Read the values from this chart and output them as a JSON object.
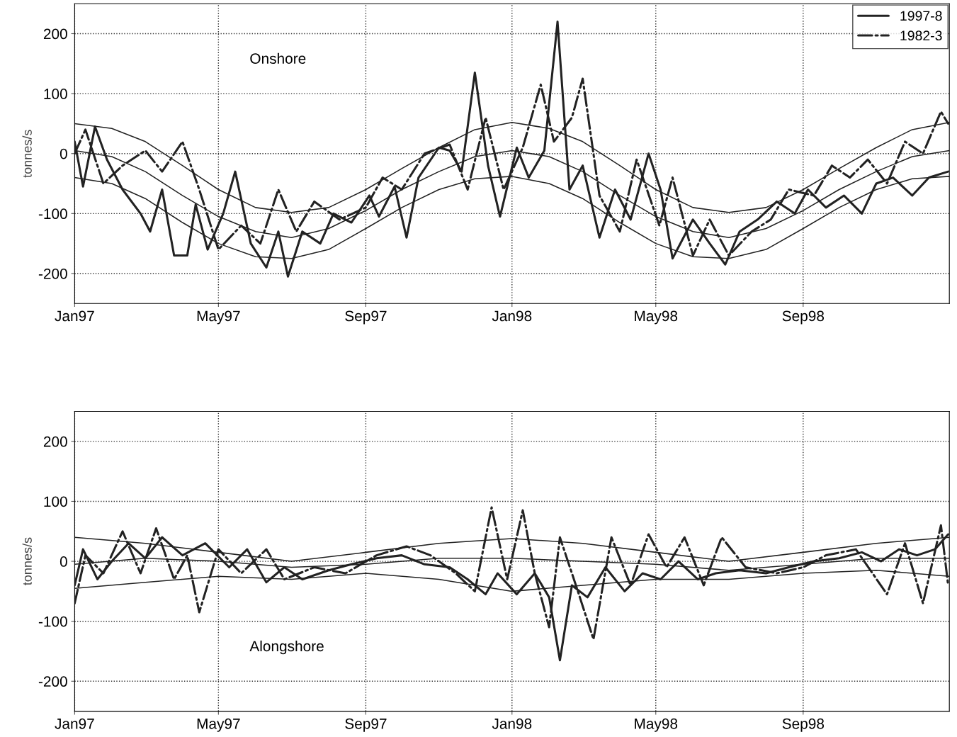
{
  "chart_data": [
    {
      "type": "line",
      "ylabel": "tonnes/s",
      "annotations": [
        "Onshore"
      ],
      "legend": "top right",
      "grid": true,
      "marker": "none",
      "xlim": [
        "1997-01-01",
        "1999-01-01"
      ],
      "ylim": [
        -250,
        250
      ],
      "yticks": [
        -200,
        -100,
        0,
        100,
        200
      ],
      "xticks": [
        {
          "value": "1997-01-01",
          "label": "Jan97"
        },
        {
          "value": "1997-05-01",
          "label": "May97"
        },
        {
          "value": "1997-09-01",
          "label": "Sep97"
        },
        {
          "value": "1998-01-01",
          "label": "Jan98"
        },
        {
          "value": "1998-05-01",
          "label": "May98"
        },
        {
          "value": "1998-09-01",
          "label": "Sep98"
        }
      ],
      "series": [
        {
          "name": "1997-8",
          "color": "#222222",
          "line_style": "solid",
          "x": [
            "1997-01-01",
            "1997-01-08",
            "1997-01-18",
            "1997-01-28",
            "1997-02-10",
            "1997-02-25",
            "1997-03-05",
            "1997-03-15",
            "1997-03-25",
            "1997-04-05",
            "1997-04-12",
            "1997-04-22",
            "1997-05-05",
            "1997-05-15",
            "1997-05-28",
            "1997-06-10",
            "1997-06-20",
            "1997-06-28",
            "1997-07-10",
            "1997-07-25",
            "1997-08-05",
            "1997-08-20",
            "1997-09-04",
            "1997-09-12",
            "1997-09-25",
            "1997-10-05",
            "1997-10-15",
            "1997-11-01",
            "1997-11-10",
            "1997-11-20",
            "1997-12-01",
            "1997-12-12",
            "1997-12-22",
            "1998-01-05",
            "1998-01-15",
            "1998-01-28",
            "1998-02-08",
            "1998-02-18",
            "1998-03-01",
            "1998-03-15",
            "1998-03-28",
            "1998-04-10",
            "1998-04-25",
            "1998-05-05",
            "1998-05-15",
            "1998-06-01",
            "1998-06-15",
            "1998-06-28",
            "1998-07-10",
            "1998-07-25",
            "1998-08-10",
            "1998-08-25",
            "1998-09-05",
            "1998-09-20",
            "1998-10-05",
            "1998-10-20",
            "1998-11-01",
            "1998-11-15",
            "1998-12-01",
            "1998-12-15",
            "1998-12-31"
          ],
          "values": [
            20,
            -55,
            45,
            -10,
            -60,
            -100,
            -130,
            -60,
            -170,
            -170,
            -85,
            -160,
            -100,
            -30,
            -150,
            -190,
            -130,
            -205,
            -130,
            -150,
            -100,
            -115,
            -70,
            -105,
            -55,
            -140,
            -40,
            10,
            5,
            -30,
            135,
            -20,
            -105,
            10,
            -40,
            5,
            220,
            -60,
            -20,
            -140,
            -60,
            -110,
            0,
            -60,
            -175,
            -110,
            -150,
            -185,
            -130,
            -110,
            -80,
            -100,
            -60,
            -90,
            -70,
            -100,
            -50,
            -40,
            -70,
            -40,
            -30
          ]
        },
        {
          "name": "1982-3",
          "color": "#222222",
          "line_style": "dashdot",
          "x": [
            "1997-01-01",
            "1997-01-10",
            "1997-01-25",
            "1997-02-10",
            "1997-03-01",
            "1997-03-15",
            "1997-04-01",
            "1997-04-15",
            "1997-05-01",
            "1997-05-20",
            "1997-06-05",
            "1997-06-20",
            "1997-07-05",
            "1997-07-20",
            "1997-08-10",
            "1997-09-01",
            "1997-09-15",
            "1997-10-01",
            "1997-10-20",
            "1997-11-10",
            "1997-11-25",
            "1997-12-10",
            "1997-12-25",
            "1998-01-10",
            "1998-01-25",
            "1998-02-05",
            "1998-02-20",
            "1998-03-01",
            "1998-03-15",
            "1998-04-01",
            "1998-04-15",
            "1998-05-04",
            "1998-05-15",
            "1998-06-01",
            "1998-06-15",
            "1998-07-01",
            "1998-07-20",
            "1998-08-05",
            "1998-08-20",
            "1998-09-10",
            "1998-09-25",
            "1998-10-10",
            "1998-10-25",
            "1998-11-10",
            "1998-11-25",
            "1998-12-10",
            "1998-12-25",
            "1998-12-31"
          ],
          "values": [
            0,
            40,
            -50,
            -20,
            5,
            -30,
            20,
            -60,
            -160,
            -120,
            -150,
            -60,
            -130,
            -80,
            -110,
            -90,
            -40,
            -60,
            0,
            15,
            -60,
            60,
            -60,
            10,
            115,
            20,
            60,
            125,
            -70,
            -130,
            -10,
            -120,
            -40,
            -170,
            -110,
            -170,
            -130,
            -110,
            -60,
            -70,
            -20,
            -40,
            -10,
            -50,
            20,
            0,
            70,
            50
          ]
        },
        {
          "color": "#222222",
          "line_style": "solid",
          "x": [
            "1997-01-01",
            "1997-02-01",
            "1997-03-01",
            "1997-04-01",
            "1997-05-01",
            "1997-06-01",
            "1997-07-01",
            "1997-08-01",
            "1997-09-01",
            "1997-10-01",
            "1997-11-01",
            "1997-12-01",
            "1998-01-01",
            "1998-02-01",
            "1998-03-01",
            "1998-04-01",
            "1998-05-01",
            "1998-06-01",
            "1998-07-01",
            "1998-08-01",
            "1998-09-01",
            "1998-10-01",
            "1998-11-01",
            "1998-12-01",
            "1999-01-01"
          ],
          "values": [
            50,
            42,
            20,
            -20,
            -60,
            -90,
            -98,
            -90,
            -60,
            -25,
            10,
            40,
            52,
            42,
            20,
            -20,
            -60,
            -90,
            -98,
            -90,
            -60,
            -25,
            10,
            40,
            52
          ]
        },
        {
          "color": "#222222",
          "line_style": "solid",
          "x": [
            "1997-01-01",
            "1997-02-01",
            "1997-03-01",
            "1997-04-01",
            "1997-05-01",
            "1997-06-01",
            "1997-07-01",
            "1997-08-01",
            "1997-09-01",
            "1997-10-01",
            "1997-11-01",
            "1997-12-01",
            "1998-01-01",
            "1998-02-01",
            "1998-03-01",
            "1998-04-01",
            "1998-05-01",
            "1998-06-01",
            "1998-07-01",
            "1998-08-01",
            "1998-09-01",
            "1998-10-01",
            "1998-11-01",
            "1998-12-01",
            "1999-01-01"
          ],
          "values": [
            5,
            -5,
            -30,
            -70,
            -105,
            -130,
            -140,
            -125,
            -95,
            -60,
            -30,
            -5,
            5,
            -5,
            -30,
            -70,
            -105,
            -130,
            -140,
            -125,
            -95,
            -60,
            -30,
            -5,
            5
          ]
        },
        {
          "color": "#222222",
          "line_style": "solid",
          "x": [
            "1997-01-01",
            "1997-02-01",
            "1997-03-01",
            "1997-04-01",
            "1997-05-01",
            "1997-06-01",
            "1997-07-01",
            "1997-08-01",
            "1997-09-01",
            "1997-10-01",
            "1997-11-01",
            "1997-12-01",
            "1998-01-01",
            "1998-02-01",
            "1998-03-01",
            "1998-04-01",
            "1998-05-01",
            "1998-06-01",
            "1998-07-01",
            "1998-08-01",
            "1998-09-01",
            "1998-10-01",
            "1998-11-01",
            "1998-12-01",
            "1999-01-01"
          ],
          "values": [
            -40,
            -50,
            -75,
            -115,
            -150,
            -172,
            -175,
            -160,
            -125,
            -90,
            -60,
            -42,
            -38,
            -50,
            -75,
            -115,
            -150,
            -172,
            -175,
            -160,
            -125,
            -90,
            -60,
            -42,
            -38
          ]
        }
      ]
    },
    {
      "type": "line",
      "ylabel": "tonnes/s",
      "annotations": [
        "Alongshore"
      ],
      "grid": true,
      "marker": "none",
      "xlim": [
        "1997-01-01",
        "1999-01-01"
      ],
      "ylim": [
        -250,
        250
      ],
      "yticks": [
        -200,
        -100,
        0,
        100,
        200
      ],
      "xticks": [
        {
          "value": "1997-01-01",
          "label": "Jan97"
        },
        {
          "value": "1997-05-01",
          "label": "May97"
        },
        {
          "value": "1997-09-01",
          "label": "Sep97"
        },
        {
          "value": "1998-01-01",
          "label": "Jan98"
        },
        {
          "value": "1998-05-01",
          "label": "May98"
        },
        {
          "value": "1998-09-01",
          "label": "Sep98"
        }
      ],
      "series": [
        {
          "color": "#222222",
          "line_style": "solid",
          "x": [
            "1997-01-01",
            "1997-01-08",
            "1997-01-20",
            "1997-02-01",
            "1997-02-15",
            "1997-03-01",
            "1997-03-15",
            "1997-04-01",
            "1997-04-20",
            "1997-05-10",
            "1997-05-25",
            "1997-06-10",
            "1997-06-25",
            "1997-07-10",
            "1997-08-01",
            "1997-08-20",
            "1997-09-10",
            "1997-10-01",
            "1997-10-20",
            "1997-11-10",
            "1997-11-25",
            "1997-12-10",
            "1997-12-20",
            "1998-01-05",
            "1998-01-20",
            "1998-02-01",
            "1998-02-10",
            "1998-02-20",
            "1998-03-05",
            "1998-03-20",
            "1998-04-05",
            "1998-04-20",
            "1998-05-05",
            "1998-05-20",
            "1998-06-05",
            "1998-06-20",
            "1998-07-10",
            "1998-08-01",
            "1998-08-20",
            "1998-09-10",
            "1998-10-01",
            "1998-10-20",
            "1998-11-05",
            "1998-11-20",
            "1998-12-05",
            "1998-12-20",
            "1998-12-31"
          ],
          "values": [
            -40,
            20,
            -30,
            0,
            30,
            5,
            40,
            10,
            30,
            -10,
            20,
            -35,
            -10,
            -30,
            -15,
            -5,
            5,
            10,
            -5,
            -10,
            -30,
            -55,
            -20,
            -55,
            -20,
            -60,
            -165,
            -40,
            -60,
            -10,
            -50,
            -20,
            -30,
            0,
            -30,
            -20,
            -15,
            -20,
            -10,
            0,
            5,
            15,
            0,
            20,
            10,
            20,
            45
          ]
        },
        {
          "color": "#222222",
          "line_style": "dashdot",
          "x": [
            "1997-01-01",
            "1997-01-10",
            "1997-01-25",
            "1997-02-10",
            "1997-02-25",
            "1997-03-10",
            "1997-03-25",
            "1997-04-05",
            "1997-04-15",
            "1997-05-01",
            "1997-05-20",
            "1997-06-10",
            "1997-06-25",
            "1997-07-20",
            "1997-08-15",
            "1997-09-10",
            "1997-10-05",
            "1997-10-25",
            "1997-11-15",
            "1997-12-01",
            "1997-12-15",
            "1997-12-28",
            "1998-01-10",
            "1998-01-20",
            "1998-02-01",
            "1998-02-10",
            "1998-02-25",
            "1998-03-10",
            "1998-03-25",
            "1998-04-10",
            "1998-04-25",
            "1998-05-10",
            "1998-05-25",
            "1998-06-10",
            "1998-06-25",
            "1998-07-15",
            "1998-08-10",
            "1998-09-01",
            "1998-09-20",
            "1998-10-15",
            "1998-11-10",
            "1998-11-25",
            "1998-12-10",
            "1998-12-25",
            "1998-12-31"
          ],
          "values": [
            -70,
            10,
            -20,
            50,
            -20,
            55,
            -30,
            10,
            -85,
            20,
            -20,
            20,
            -30,
            -10,
            -20,
            10,
            25,
            10,
            -20,
            -50,
            90,
            -30,
            85,
            -20,
            -110,
            40,
            -50,
            -130,
            40,
            -40,
            45,
            -10,
            40,
            -40,
            40,
            -10,
            -20,
            -10,
            10,
            20,
            -55,
            30,
            -70,
            60,
            -40
          ]
        },
        {
          "color": "#222222",
          "line_style": "solid",
          "x": [
            "1997-01-01",
            "1997-03-01",
            "1997-05-01",
            "1997-07-01",
            "1997-09-01",
            "1997-11-01",
            "1998-01-01",
            "1998-03-01",
            "1998-05-01",
            "1998-07-01",
            "1998-09-01",
            "1998-11-01",
            "1999-01-01"
          ],
          "values": [
            40,
            30,
            15,
            0,
            15,
            30,
            38,
            30,
            15,
            0,
            15,
            30,
            40
          ]
        },
        {
          "color": "#222222",
          "line_style": "solid",
          "x": [
            "1997-01-01",
            "1997-03-01",
            "1997-05-01",
            "1997-07-01",
            "1997-09-01",
            "1997-11-01",
            "1998-01-01",
            "1998-03-01",
            "1998-05-01",
            "1998-07-01",
            "1998-09-01",
            "1998-11-01",
            "1999-01-01"
          ],
          "values": [
            -5,
            5,
            0,
            -10,
            -5,
            5,
            5,
            0,
            -5,
            -15,
            -5,
            5,
            5
          ]
        },
        {
          "color": "#222222",
          "line_style": "solid",
          "x": [
            "1997-01-01",
            "1997-03-01",
            "1997-05-01",
            "1997-07-01",
            "1997-09-01",
            "1997-11-01",
            "1998-01-01",
            "1998-03-01",
            "1998-05-01",
            "1998-07-01",
            "1998-09-01",
            "1998-11-01",
            "1999-01-01"
          ],
          "values": [
            -45,
            -35,
            -25,
            -30,
            -20,
            -30,
            -50,
            -40,
            -30,
            -30,
            -20,
            -15,
            -25
          ]
        }
      ]
    }
  ]
}
